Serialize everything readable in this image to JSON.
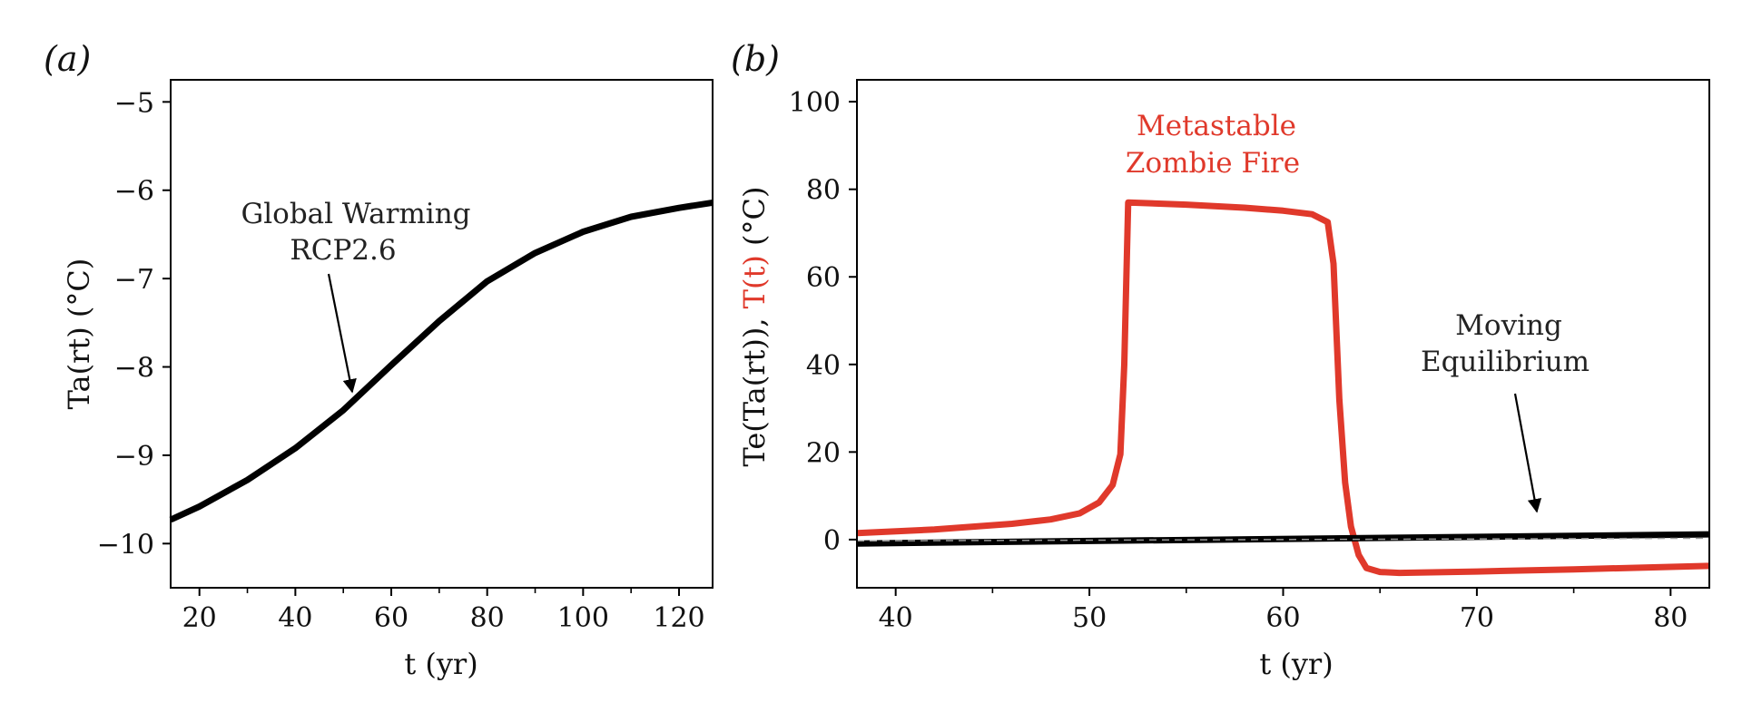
{
  "colors": {
    "red": "#e0392b",
    "black": "#000000",
    "dashed": "#999999"
  },
  "chart_data": [
    {
      "type": "line",
      "panel_label": "(a)",
      "xlabel": "t (yr)",
      "ylabel": "Ta(rt) (°C)",
      "xlim": [
        14,
        127
      ],
      "ylim": [
        -10.5,
        -4.75
      ],
      "xticks": [
        20,
        40,
        60,
        80,
        100,
        120
      ],
      "xtick_labels": [
        "20",
        "40",
        "60",
        "80",
        "100",
        "120"
      ],
      "yticks": [
        -10,
        -9,
        -8,
        -7,
        -6,
        -5
      ],
      "ytick_labels": [
        "−10",
        "−9",
        "−8",
        "−7",
        "−6",
        "−5"
      ],
      "minor_xticks": [
        30,
        50,
        70,
        90,
        110
      ],
      "series": [
        {
          "color": "#000000",
          "x": [
            14,
            20,
            30,
            40,
            50,
            60,
            70,
            80,
            90,
            100,
            110,
            120,
            127
          ],
          "y": [
            -9.73,
            -9.58,
            -9.28,
            -8.92,
            -8.49,
            -7.98,
            -7.48,
            -7.03,
            -6.71,
            -6.47,
            -6.3,
            -6.2,
            -6.14
          ]
        }
      ],
      "annotations": [
        {
          "lines": [
            "Global Warming",
            "RCP2.6"
          ],
          "arrow_to": [
            52,
            -8.33
          ]
        }
      ]
    },
    {
      "type": "line",
      "panel_label": "(b)",
      "xlabel": "t (yr)",
      "ylabel_parts": [
        "Te(Ta(rt)), ",
        "T(t)",
        " (°C)"
      ],
      "xlim": [
        38,
        82
      ],
      "ylim": [
        -11,
        105
      ],
      "xticks": [
        40,
        50,
        60,
        70,
        80
      ],
      "xtick_labels": [
        "40",
        "50",
        "60",
        "70",
        "80"
      ],
      "yticks": [
        0,
        20,
        40,
        60,
        80,
        100
      ],
      "ytick_labels": [
        "0",
        "20",
        "40",
        "60",
        "80",
        "100"
      ],
      "minor_xticks": [
        45,
        55,
        65,
        75
      ],
      "series": [
        {
          "color": "#e0392b",
          "x": [
            38,
            42,
            46,
            48,
            49.5,
            50.5,
            51.2,
            51.6,
            51.8,
            52.0,
            55,
            58,
            60,
            61.5,
            62.3,
            62.6,
            62.9,
            63.2,
            63.5,
            63.9,
            64.3,
            65,
            66,
            70,
            75,
            82
          ],
          "y": [
            1.5,
            2.3,
            3.6,
            4.6,
            6.0,
            8.5,
            12.5,
            19.5,
            40,
            77,
            76.5,
            75.8,
            75.1,
            74.3,
            72.5,
            63,
            32,
            13,
            3,
            -3.5,
            -6.5,
            -7.4,
            -7.6,
            -7.3,
            -6.8,
            -6.0
          ]
        },
        {
          "color": "#000000",
          "x": [
            38,
            82
          ],
          "y": [
            -0.9,
            1.2
          ]
        },
        {
          "color": "#999999",
          "style": "dashed",
          "x": [
            38,
            82
          ],
          "y": [
            -0.3,
            0.3
          ]
        }
      ],
      "annotations": [
        {
          "lines": [
            "Metastable",
            "Zombie Fire"
          ],
          "color": "#e0392b"
        },
        {
          "lines": [
            "Moving",
            "Equilibrium"
          ],
          "arrow_to": [
            73,
            5
          ]
        }
      ]
    }
  ]
}
